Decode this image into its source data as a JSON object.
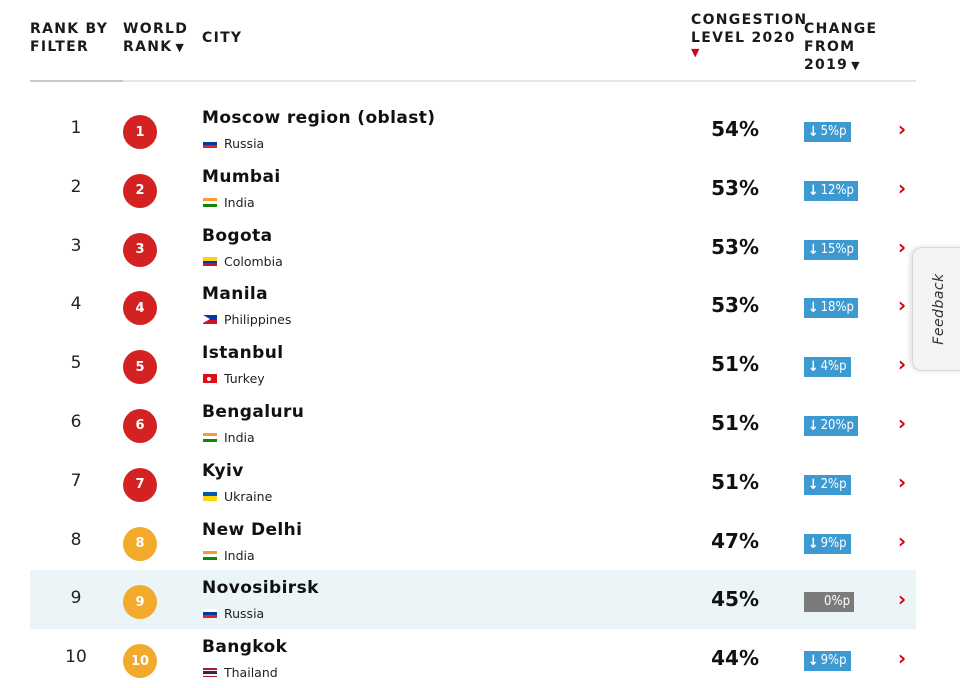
{
  "headers": {
    "rank_by_filter": "RANK BY FILTER",
    "world_rank": "WORLD RANK",
    "world_rank_caret": "▼",
    "city": "CITY",
    "congestion_level": "CONGESTION LEVEL 2020",
    "congestion_caret": "▼",
    "change": "CHANGE FROM 2019",
    "change_caret": "▼"
  },
  "colors": {
    "badge_red": "#d42222",
    "badge_orange": "#f2aa2b",
    "change_blue": "#3d9ad1",
    "change_gray": "#7b7b7b",
    "accent_red": "#d0021b",
    "highlight_row": "#ebf5f8"
  },
  "rows": [
    {
      "rank": "1",
      "world_rank": "1",
      "badge": "red",
      "city": "Moscow region (oblast)",
      "country": "Russia",
      "flag": "ru",
      "congestion": "54%",
      "change": "5%p",
      "change_dir": "down",
      "change_arrow": "↓",
      "highlighted": false
    },
    {
      "rank": "2",
      "world_rank": "2",
      "badge": "red",
      "city": "Mumbai",
      "country": "India",
      "flag": "in",
      "congestion": "53%",
      "change": "12%p",
      "change_dir": "down",
      "change_arrow": "↓",
      "highlighted": false
    },
    {
      "rank": "3",
      "world_rank": "3",
      "badge": "red",
      "city": "Bogota",
      "country": "Colombia",
      "flag": "co",
      "congestion": "53%",
      "change": "15%p",
      "change_dir": "down",
      "change_arrow": "↓",
      "highlighted": false
    },
    {
      "rank": "4",
      "world_rank": "4",
      "badge": "red",
      "city": "Manila",
      "country": "Philippines",
      "flag": "ph",
      "congestion": "53%",
      "change": "18%p",
      "change_dir": "down",
      "change_arrow": "↓",
      "highlighted": false
    },
    {
      "rank": "5",
      "world_rank": "5",
      "badge": "red",
      "city": "Istanbul",
      "country": "Turkey",
      "flag": "tr",
      "congestion": "51%",
      "change": "4%p",
      "change_dir": "down",
      "change_arrow": "↓",
      "highlighted": false
    },
    {
      "rank": "6",
      "world_rank": "6",
      "badge": "red",
      "city": "Bengaluru",
      "country": "India",
      "flag": "in",
      "congestion": "51%",
      "change": "20%p",
      "change_dir": "down",
      "change_arrow": "↓",
      "highlighted": false
    },
    {
      "rank": "7",
      "world_rank": "7",
      "badge": "red",
      "city": "Kyiv",
      "country": "Ukraine",
      "flag": "ua",
      "congestion": "51%",
      "change": "2%p",
      "change_dir": "down",
      "change_arrow": "↓",
      "highlighted": false
    },
    {
      "rank": "8",
      "world_rank": "8",
      "badge": "orange",
      "city": "New Delhi",
      "country": "India",
      "flag": "in",
      "congestion": "47%",
      "change": "9%p",
      "change_dir": "down",
      "change_arrow": "↓",
      "highlighted": false
    },
    {
      "rank": "9",
      "world_rank": "9",
      "badge": "orange",
      "city": "Novosibirsk",
      "country": "Russia",
      "flag": "ru",
      "congestion": "45%",
      "change": "0%p",
      "change_dir": "zero",
      "change_arrow": "",
      "highlighted": true
    },
    {
      "rank": "10",
      "world_rank": "10",
      "badge": "orange",
      "city": "Bangkok",
      "country": "Thailand",
      "flag": "th",
      "congestion": "44%",
      "change": "9%p",
      "change_dir": "down",
      "change_arrow": "↓",
      "highlighted": false
    }
  ],
  "row_chevron": "›",
  "feedback_tab": "Feedback"
}
